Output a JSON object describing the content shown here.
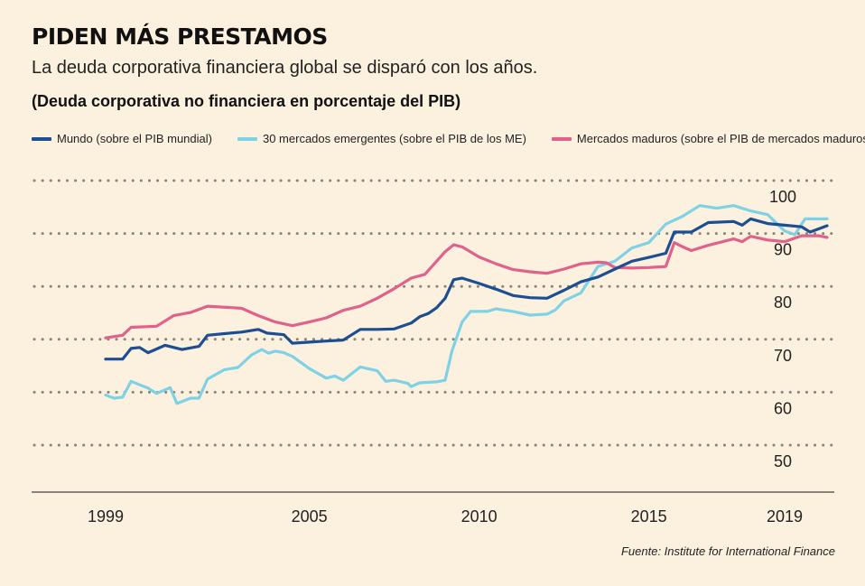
{
  "header": {
    "title": "PIDEN MÁS PRESTAMOS",
    "subtitle": "La deuda corporativa financiera global se disparó con los años.",
    "unit_label": "(Deuda corporativa no financiera en porcentaje del PIB)"
  },
  "source": "Fuente: Institute for  International Finance",
  "colors": {
    "background": "#fcf1de",
    "mundo": "#1c4e91",
    "emergentes": "#7fd1e6",
    "maduros": "#e0628a",
    "grid": "#8a8478",
    "axis": "#8a8478"
  },
  "chart_data": {
    "type": "line",
    "title": "PIDEN MÁS PRESTAMOS",
    "ylabel": "(Deuda corporativa no financiera en porcentaje del PIB)",
    "xlabel": "",
    "ylim": [
      47,
      101
    ],
    "xlim": [
      1998.25,
      2019.75
    ],
    "grid": true,
    "legend_position": "top",
    "yticks": [
      50,
      60,
      70,
      80,
      90,
      100
    ],
    "ytick_labels": [
      "50",
      "60",
      "70",
      "80",
      "90",
      "100"
    ],
    "xticks": [
      1999,
      2005,
      2010,
      2015,
      2019
    ],
    "xtick_labels": [
      "1999",
      "2005",
      "2010",
      "2015",
      "2019"
    ],
    "series": [
      {
        "name": "Mundo (sobre el PIB mundial)",
        "color": "#1c4e91",
        "points": [
          [
            1999.0,
            69.0
          ],
          [
            1999.5,
            69.0
          ],
          [
            1999.75,
            71.0
          ],
          [
            2000.0,
            71.2
          ],
          [
            2000.25,
            70.2
          ],
          [
            2000.75,
            71.6
          ],
          [
            2001.25,
            70.8
          ],
          [
            2001.75,
            71.4
          ],
          [
            2002.0,
            73.5
          ],
          [
            2002.5,
            73.8
          ],
          [
            2003.0,
            74.1
          ],
          [
            2003.5,
            74.6
          ],
          [
            2003.75,
            73.9
          ],
          [
            2004.25,
            73.6
          ],
          [
            2004.5,
            72.0
          ],
          [
            2005.0,
            72.2
          ],
          [
            2005.5,
            72.4
          ],
          [
            2006.0,
            72.6
          ],
          [
            2006.5,
            74.6
          ],
          [
            2007.0,
            74.6
          ],
          [
            2007.5,
            74.7
          ],
          [
            2008.0,
            75.8
          ],
          [
            2008.25,
            77.0
          ],
          [
            2008.5,
            77.6
          ],
          [
            2008.75,
            78.7
          ],
          [
            2009.0,
            80.5
          ],
          [
            2009.25,
            84.0
          ],
          [
            2009.5,
            84.3
          ],
          [
            2010.0,
            83.3
          ],
          [
            2010.5,
            82.2
          ],
          [
            2011.0,
            81.0
          ],
          [
            2011.5,
            80.6
          ],
          [
            2012.0,
            80.5
          ],
          [
            2012.5,
            82.0
          ],
          [
            2013.0,
            83.6
          ],
          [
            2013.5,
            84.5
          ],
          [
            2014.0,
            86.0
          ],
          [
            2014.5,
            87.5
          ],
          [
            2015.0,
            88.2
          ],
          [
            2015.5,
            89.0
          ],
          [
            2015.75,
            93.0
          ],
          [
            2016.25,
            93.0
          ],
          [
            2016.75,
            94.8
          ],
          [
            2017.5,
            95.0
          ],
          [
            2017.75,
            94.3
          ],
          [
            2018.0,
            95.5
          ],
          [
            2018.5,
            94.6
          ],
          [
            2019.0,
            94.3
          ],
          [
            2019.5,
            94.0
          ],
          [
            2019.75,
            93.0
          ],
          [
            2020.25,
            94.2
          ]
        ]
      },
      {
        "name": "30 mercados emergentes (sobre el PIB de los ME)",
        "color": "#7fd1e6",
        "points": [
          [
            1999.0,
            62.2
          ],
          [
            1999.25,
            61.6
          ],
          [
            1999.5,
            61.8
          ],
          [
            1999.75,
            64.8
          ],
          [
            2000.25,
            63.5
          ],
          [
            2000.5,
            62.5
          ],
          [
            2000.9,
            63.6
          ],
          [
            2001.1,
            60.6
          ],
          [
            2001.5,
            61.6
          ],
          [
            2001.75,
            61.6
          ],
          [
            2002.0,
            65.2
          ],
          [
            2002.5,
            67.0
          ],
          [
            2002.9,
            67.4
          ],
          [
            2003.3,
            69.8
          ],
          [
            2003.6,
            70.8
          ],
          [
            2003.8,
            70.1
          ],
          [
            2004.0,
            70.5
          ],
          [
            2004.25,
            70.2
          ],
          [
            2004.5,
            69.5
          ],
          [
            2005.0,
            67.2
          ],
          [
            2005.5,
            65.4
          ],
          [
            2005.75,
            65.8
          ],
          [
            2006.0,
            65.0
          ],
          [
            2006.5,
            67.5
          ],
          [
            2007.0,
            66.8
          ],
          [
            2007.25,
            64.8
          ],
          [
            2007.5,
            65.0
          ],
          [
            2007.9,
            64.4
          ],
          [
            2008.0,
            63.8
          ],
          [
            2008.25,
            64.5
          ],
          [
            2008.75,
            64.7
          ],
          [
            2009.0,
            65.0
          ],
          [
            2009.2,
            70.5
          ],
          [
            2009.5,
            76.0
          ],
          [
            2009.75,
            78.0
          ],
          [
            2010.25,
            78.0
          ],
          [
            2010.5,
            78.5
          ],
          [
            2011.0,
            78.0
          ],
          [
            2011.5,
            77.3
          ],
          [
            2012.0,
            77.5
          ],
          [
            2012.25,
            78.3
          ],
          [
            2012.5,
            80.0
          ],
          [
            2013.0,
            81.5
          ],
          [
            2013.5,
            86.5
          ],
          [
            2014.0,
            87.5
          ],
          [
            2014.5,
            90.0
          ],
          [
            2015.0,
            91.0
          ],
          [
            2015.5,
            94.5
          ],
          [
            2016.0,
            96.0
          ],
          [
            2016.5,
            98.0
          ],
          [
            2017.0,
            97.5
          ],
          [
            2017.5,
            98.0
          ],
          [
            2018.0,
            97.0
          ],
          [
            2018.5,
            96.3
          ],
          [
            2019.0,
            93.2
          ],
          [
            2019.3,
            92.5
          ],
          [
            2019.6,
            95.5
          ],
          [
            2020.25,
            95.5
          ]
        ]
      },
      {
        "name": "Mercados maduros (sobre el PIB de mercados maduros)",
        "color": "#e0628a",
        "points": [
          [
            1999.0,
            73.0
          ],
          [
            1999.5,
            73.5
          ],
          [
            1999.75,
            75.0
          ],
          [
            2000.5,
            75.2
          ],
          [
            2001.0,
            77.2
          ],
          [
            2001.5,
            77.8
          ],
          [
            2002.0,
            79.0
          ],
          [
            2003.0,
            78.6
          ],
          [
            2003.5,
            77.2
          ],
          [
            2004.0,
            76.0
          ],
          [
            2004.5,
            75.3
          ],
          [
            2005.0,
            76.0
          ],
          [
            2005.5,
            76.8
          ],
          [
            2006.0,
            78.2
          ],
          [
            2006.5,
            79.0
          ],
          [
            2007.0,
            80.5
          ],
          [
            2007.5,
            82.3
          ],
          [
            2008.0,
            84.3
          ],
          [
            2008.4,
            85.0
          ],
          [
            2008.75,
            87.5
          ],
          [
            2009.0,
            89.3
          ],
          [
            2009.25,
            90.6
          ],
          [
            2009.5,
            90.2
          ],
          [
            2010.0,
            88.3
          ],
          [
            2010.5,
            87.0
          ],
          [
            2011.0,
            85.9
          ],
          [
            2011.5,
            85.5
          ],
          [
            2012.0,
            85.2
          ],
          [
            2012.5,
            86.0
          ],
          [
            2013.0,
            87.0
          ],
          [
            2013.5,
            87.3
          ],
          [
            2013.75,
            87.2
          ],
          [
            2014.0,
            86.3
          ],
          [
            2014.5,
            86.2
          ],
          [
            2015.0,
            86.3
          ],
          [
            2015.5,
            86.5
          ],
          [
            2015.75,
            91.0
          ],
          [
            2016.0,
            90.2
          ],
          [
            2016.25,
            89.5
          ],
          [
            2016.75,
            90.5
          ],
          [
            2017.5,
            91.7
          ],
          [
            2017.75,
            91.2
          ],
          [
            2018.0,
            92.2
          ],
          [
            2018.5,
            91.5
          ],
          [
            2019.0,
            91.2
          ],
          [
            2019.5,
            92.3
          ],
          [
            2020.0,
            92.3
          ],
          [
            2020.25,
            92.0
          ]
        ]
      }
    ]
  }
}
